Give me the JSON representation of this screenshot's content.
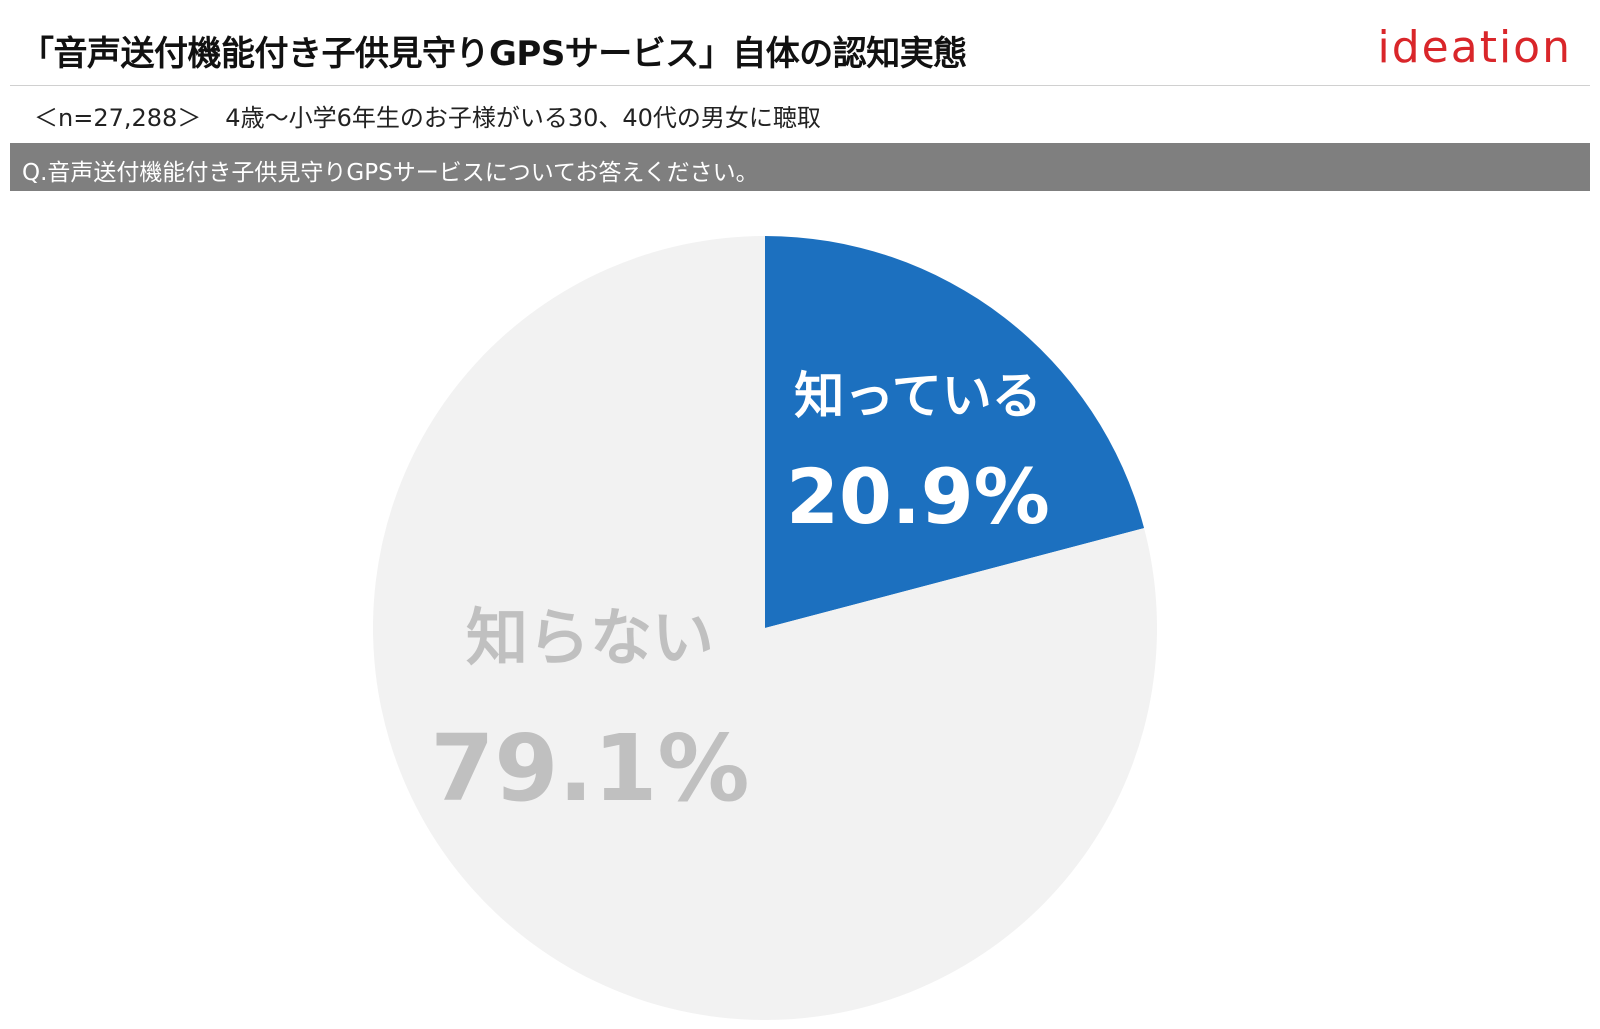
{
  "header": {
    "title": "「音声送付機能付き子供見守りGPSサービス」自体の認知実態",
    "logo": "ideation",
    "subtitle": "＜n=27,288＞　4歳～小学6年生のお子様がいる30、40代の男女に聴取",
    "question": "Q.音声送付機能付き子供見守りGPSサービスについてお答えください。"
  },
  "colors": {
    "logo": "#d9262a",
    "question_bar": "#7f7f7f",
    "slice_known": "#1c70bf",
    "slice_unknown": "#f2f2f2",
    "label_known": "#ffffff",
    "label_unknown": "#c0c0c0"
  },
  "chart_data": {
    "type": "pie",
    "start": "12 o'clock",
    "direction": "clockwise",
    "slices": [
      {
        "label": "知っている",
        "value": 20.9,
        "value_label": "20.9%",
        "color": "#1c70bf",
        "text_color": "#ffffff"
      },
      {
        "label": "知らない",
        "value": 79.1,
        "value_label": "79.1%",
        "color": "#f2f2f2",
        "text_color": "#c0c0c0"
      }
    ]
  }
}
